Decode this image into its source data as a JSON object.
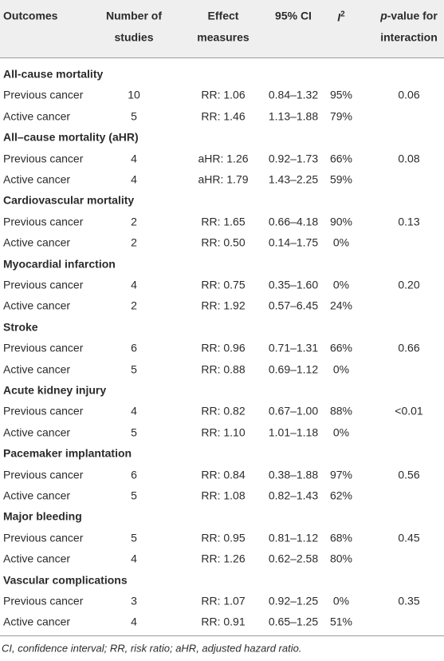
{
  "header": {
    "outcomes": "Outcomes",
    "studies": [
      "Number of",
      "studies"
    ],
    "effect": [
      "Effect",
      "measures"
    ],
    "ci": "95% CI",
    "i2": {
      "base": "I",
      "sup": "2"
    },
    "pvalue": {
      "italic": "p",
      "line1": "-value for",
      "line2": "interaction"
    }
  },
  "sections": [
    {
      "title": "All-cause mortality",
      "p_value": "0.06",
      "rows": [
        [
          "Previous cancer",
          10,
          "RR: 1.06",
          "0.84–1.32",
          "95%"
        ],
        [
          "Active cancer",
          5,
          "RR: 1.46",
          "1.13–1.88",
          "79%"
        ]
      ]
    },
    {
      "title": "All–cause mortality (aHR)",
      "p_value": "0.08",
      "rows": [
        [
          "Previous cancer",
          4,
          "aHR: 1.26",
          "0.92–1.73",
          "66%"
        ],
        [
          "Active cancer",
          4,
          "aHR: 1.79",
          "1.43–2.25",
          "59%"
        ]
      ]
    },
    {
      "title": "Cardiovascular mortality",
      "p_value": "0.13",
      "rows": [
        [
          "Previous cancer",
          2,
          "RR: 1.65",
          "0.66–4.18",
          "90%"
        ],
        [
          "Active cancer",
          2,
          "RR: 0.50",
          "0.14–1.75",
          "0%"
        ]
      ]
    },
    {
      "title": "Myocardial infarction",
      "p_value": "0.20",
      "rows": [
        [
          "Previous cancer",
          4,
          "RR: 0.75",
          "0.35–1.60",
          "0%"
        ],
        [
          "Active cancer",
          2,
          "RR: 1.92",
          "0.57–6.45",
          "24%"
        ]
      ]
    },
    {
      "title": "Stroke",
      "p_value": "0.66",
      "rows": [
        [
          "Previous cancer",
          6,
          "RR: 0.96",
          "0.71–1.31",
          "66%"
        ],
        [
          "Active cancer",
          5,
          "RR: 0.88",
          "0.69–1.12",
          "0%"
        ]
      ]
    },
    {
      "title": "Acute kidney injury",
      "p_value": "<0.01",
      "rows": [
        [
          "Previous cancer",
          4,
          "RR: 0.82",
          "0.67–1.00",
          "88%"
        ],
        [
          "Active cancer",
          5,
          "RR: 1.10",
          "1.01–1.18",
          "0%"
        ]
      ]
    },
    {
      "title": "Pacemaker implantation",
      "p_value": "0.56",
      "rows": [
        [
          "Previous cancer",
          6,
          "RR: 0.84",
          "0.38–1.88",
          "97%"
        ],
        [
          "Active cancer",
          5,
          "RR: 1.08",
          "0.82–1.43",
          "62%"
        ]
      ]
    },
    {
      "title": "Major bleeding",
      "p_value": "0.45",
      "rows": [
        [
          "Previous cancer",
          5,
          "RR: 0.95",
          "0.81–1.12",
          "68%"
        ],
        [
          "Active cancer",
          4,
          "RR: 1.26",
          "0.62–2.58",
          "80%"
        ]
      ]
    },
    {
      "title": "Vascular complications",
      "p_value": "0.35",
      "rows": [
        [
          "Previous cancer",
          3,
          "RR: 1.07",
          "0.92–1.25",
          "0%"
        ],
        [
          "Active cancer",
          4,
          "RR: 0.91",
          "0.65–1.25",
          "51%"
        ]
      ]
    }
  ],
  "footnote": "CI, confidence interval; RR, risk ratio; aHR, adjusted hazard ratio."
}
